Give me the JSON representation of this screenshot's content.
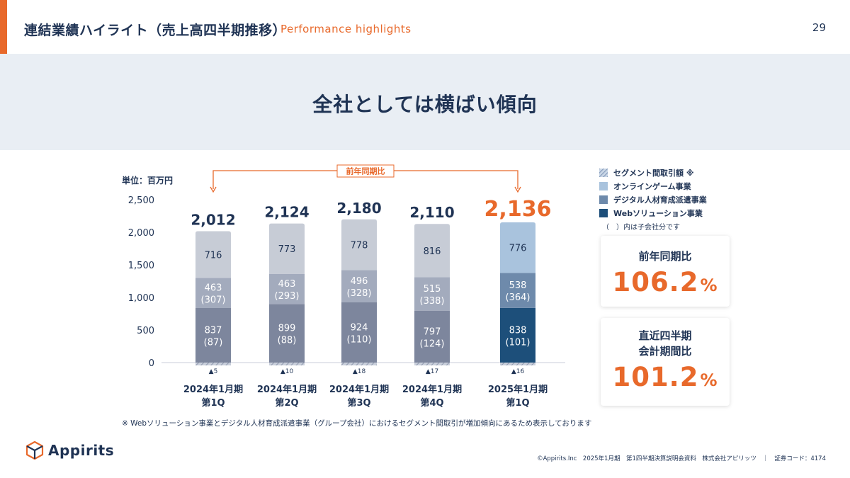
{
  "header": {
    "title": "連結業績ハイライト（売上高四半期推移）",
    "subtitle": "Performance highlights",
    "page_number": "29"
  },
  "banner": {
    "text": "全社としては横ばい傾向"
  },
  "colors": {
    "accent": "#e8692b",
    "navy": "#1f3354",
    "gray_top": "#c7ccd6",
    "gray_mid": "#a3abbd",
    "gray_bottom": "#7d869d",
    "cur_top": "#a9c3dd",
    "cur_mid": "#6e8aab",
    "cur_bottom": "#1d4f7a",
    "elim": "#9aa4b8"
  },
  "chart_data": {
    "type": "bar",
    "stacked": true,
    "unit_label": "単位：百万円",
    "ylim": [
      0,
      2500
    ],
    "yticks": [
      "0",
      "500",
      "1,000",
      "1,500",
      "2,000",
      "2,500"
    ],
    "ytick_values": [
      0,
      500,
      1000,
      1500,
      2000,
      2500
    ],
    "categories": [
      [
        "2024年1月期",
        "第1Q"
      ],
      [
        "2024年1月期",
        "第2Q"
      ],
      [
        "2024年1月期",
        "第3Q"
      ],
      [
        "2024年1月期",
        "第4Q"
      ],
      [
        "2025年1月期",
        "第1Q"
      ]
    ],
    "totals": [
      "2,012",
      "2,124",
      "2,180",
      "2,110",
      "2,136"
    ],
    "series": [
      {
        "name": "Webソリューション事業",
        "values": [
          837,
          899,
          924,
          797,
          838
        ],
        "subsidiary": [
          "(87)",
          "(88)",
          "(110)",
          "(124)",
          "(101)"
        ]
      },
      {
        "name": "デジタル人材育成派遣事業",
        "values": [
          463,
          463,
          496,
          515,
          538
        ],
        "subsidiary": [
          "(307)",
          "(293)",
          "(328)",
          "(338)",
          "(364)"
        ]
      },
      {
        "name": "オンラインゲーム事業",
        "values": [
          716,
          773,
          778,
          816,
          776
        ]
      },
      {
        "name": "セグメント間取引額 ※",
        "values": [
          -5,
          -10,
          -18,
          -17,
          -16
        ],
        "labels": [
          "▲5",
          "▲10",
          "▲18",
          "▲17",
          "▲16"
        ]
      }
    ],
    "yoy_label": "前年同期比"
  },
  "legend": {
    "items": [
      {
        "label": "セグメント間取引額 ※",
        "color": "#9aa4b8",
        "hatched": true
      },
      {
        "label": "オンラインゲーム事業",
        "color": "#a9c3dd",
        "hatched": false
      },
      {
        "label": "デジタル人材育成派遣事業",
        "color": "#6e8aab",
        "hatched": false
      },
      {
        "label": "Webソリューション事業",
        "color": "#1d4f7a",
        "hatched": false
      }
    ],
    "note": "（　）内は子会社分です"
  },
  "cards": {
    "yoy": {
      "label": "前年同期比",
      "value": "106.2",
      "unit": "%"
    },
    "qoq": {
      "label_line1": "直近四半期",
      "label_line2": "会計期間比",
      "value": "101.2",
      "unit": "%"
    }
  },
  "footnote": "※ Webソリューション事業とデジタル人材育成派遣事業（グループ会社）におけるセグメント間取引が増加傾向にあるため表示しております",
  "footer": {
    "logo_text": "Appirits",
    "copyright": "©Appirits.Inc　2025年1月期　第1四半期決算説明会資料　株式会社アピリッツ　｜　証券コード：4174"
  }
}
